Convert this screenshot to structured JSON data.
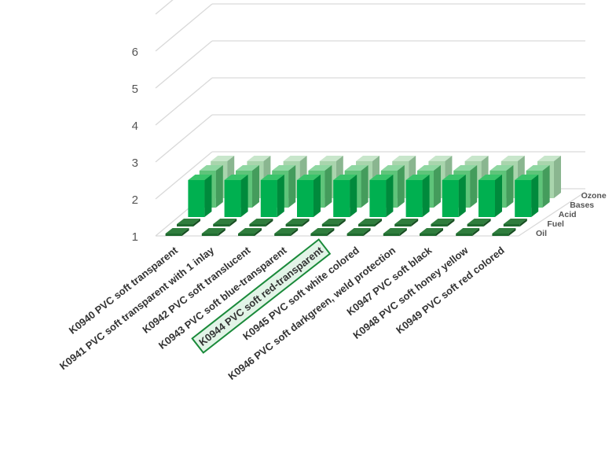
{
  "chart_data": {
    "type": "bar",
    "variant": "3d-column",
    "categories": [
      "K0940 PVC soft transparent",
      "K0941 PVC soft transparent with 1 inlay",
      "K0942 PVC soft translucent",
      "K0943 PVC soft blue-transparent",
      "K0944 PVC soft red-transparent",
      "K0945 PVC soft white colored",
      "K0946 PVC soft darkgreen, weld protection",
      "K0947 PVC soft black",
      "K0948 PVC soft honey yellow",
      "K0949 PVC soft red colored"
    ],
    "highlighted_category": 4,
    "series": [
      {
        "name": "Oil",
        "values": [
          1,
          1,
          1,
          1,
          1,
          1,
          1,
          1,
          1,
          1
        ]
      },
      {
        "name": "Fuel",
        "values": [
          1,
          1,
          1,
          1,
          1,
          1,
          1,
          1,
          1,
          1
        ]
      },
      {
        "name": "Acid",
        "values": [
          2,
          2,
          2,
          2,
          2,
          2,
          2,
          2,
          2,
          2
        ]
      },
      {
        "name": "Bases",
        "values": [
          2,
          2,
          2,
          2,
          2,
          2,
          2,
          2,
          2,
          2
        ]
      },
      {
        "name": "Ozone",
        "values": [
          2,
          2,
          2,
          2,
          2,
          2,
          2,
          2,
          2,
          2
        ]
      }
    ],
    "yticks": [
      "1",
      "2",
      "3",
      "4",
      "5",
      "6"
    ],
    "ylim": [
      1,
      7
    ],
    "grid": true,
    "colors": {
      "series_front": "#00b050",
      "series_mid": "#5fc47a",
      "series_back": "#a9d5ad",
      "flat_bar": "#1f6a2f",
      "gridline": "#d9d9d9",
      "highlight_fill": "#e2f4e7",
      "highlight_border": "#1a8a3a"
    }
  }
}
